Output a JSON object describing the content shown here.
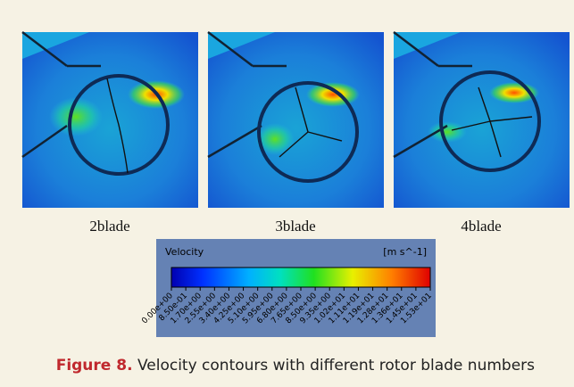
{
  "panels": [
    {
      "label": "2blade"
    },
    {
      "label": "3blade"
    },
    {
      "label": "4blade"
    }
  ],
  "colorbar": {
    "title": "Velocity",
    "unit": "[m s^-1]",
    "ticks": [
      "0.00e+00",
      "8.50e-01",
      "1.70e+00",
      "2.55e+00",
      "3.40e+00",
      "4.25e+00",
      "5.10e+00",
      "5.95e+00",
      "6.80e+00",
      "7.65e+00",
      "8.50e+00",
      "9.35e+00",
      "1.02e+01",
      "1.11e+01",
      "1.19e+01",
      "1.28e+01",
      "1.36e+01",
      "1.45e+01",
      "1.53e+01"
    ]
  },
  "caption": {
    "label": "Figure 8.",
    "text": " Velocity contours with different rotor blade numbers"
  }
}
